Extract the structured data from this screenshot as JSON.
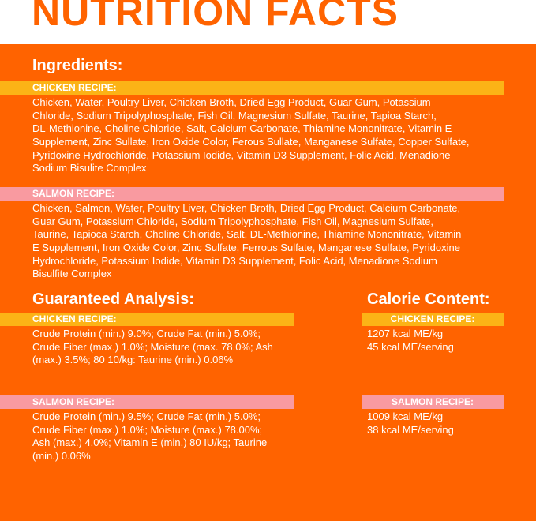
{
  "title": "NUTRITION FACTS",
  "colors": {
    "background": "#ff6300",
    "chicken_bar": "#fcb316",
    "salmon_bar": "#f99aa0"
  },
  "ingredients": {
    "heading": "Ingredients:",
    "chicken": {
      "label": "CHICKEN RECIPE:",
      "lines": [
        "Chicken, Water, Poultry Liver, Chicken Broth, Dried Egg Product, Guar Gum, Potassium",
        "Chloride, Sodium Tripolyphosphate, Fish Oil, Magnesium Sulfate, Taurine, Tapioa Starch,",
        "DL-Methionine, Choline Chloride, Salt, Calcium Carbonate, Thiamine Mononitrate, Vitamin E",
        "Supplement, Zinc Sullate, Iron Oxide Color, Ferous Sullate, Manganese Sulfate, Copper Sulfate,",
        "Pyridoxine Hydrochloride, Potassium Iodide, Vitamin D3 Supplement, Folic Acid, Menadione",
        "Sodium Bisulite Complex"
      ]
    },
    "salmon": {
      "label": "SALMON RECIPE:",
      "lines": [
        "Chicken,  Salmon, Water, Poultry Liver, Chicken Broth, Dried Egg Product, Calcium Carbonate,",
        "Guar Gum, Potassium Chloride, Sodium Tripolyphosphate, Fish Oil, Magnesium Sulfate,",
        "Taurine, Tapioca Starch, Choline Chloride, Salt, DL-Methionine, Thiamine Mononitrate, Vitamin",
        "E Supplement, Iron Oxide Color, Zinc Sulfate, Ferrous Sulfate, Manganese Sulfate, Pyridoxine",
        "Hydrochloride, Potassium Iodide, Vitamin D3 Supplement, Folic Acid, Menadione Sodium",
        "Bisulfite Complex"
      ]
    }
  },
  "analysis": {
    "heading": "Guaranteed Analysis:",
    "chicken": {
      "label": "CHICKEN RECIPE:",
      "lines": [
        "Crude Protein (min.) 9.0%; Crude Fat (min.) 5.0%;",
        "Crude Fiber (max.) 1.0%; Moisture (max. 78.0%; Ash",
        "(max.) 3.5%; 80 10/kg: Taurine (min.) 0.06%"
      ]
    },
    "salmon": {
      "label": "SALMON RECIPE:",
      "lines": [
        "Crude Protein (min.) 9.5%; Crude Fat (min.) 5.0%;",
        "Crude Fiber (max.) 1.0%; Moisture (max.) 78.00%;",
        "Ash (max.) 4.0%; Vitamin E (min.) 80 IU/kg; Taurine",
        "(min.) 0.06%"
      ]
    }
  },
  "calories": {
    "heading": "Calorie Content:",
    "chicken": {
      "label": "CHICKEN RECIPE:",
      "lines": [
        "1207 kcal ME/kg",
        "45 kcal ME/serving"
      ]
    },
    "salmon": {
      "label": "SALMON RECIPE:",
      "lines": [
        "1009 kcal ME/kg",
        "38 kcal ME/serving"
      ]
    }
  }
}
